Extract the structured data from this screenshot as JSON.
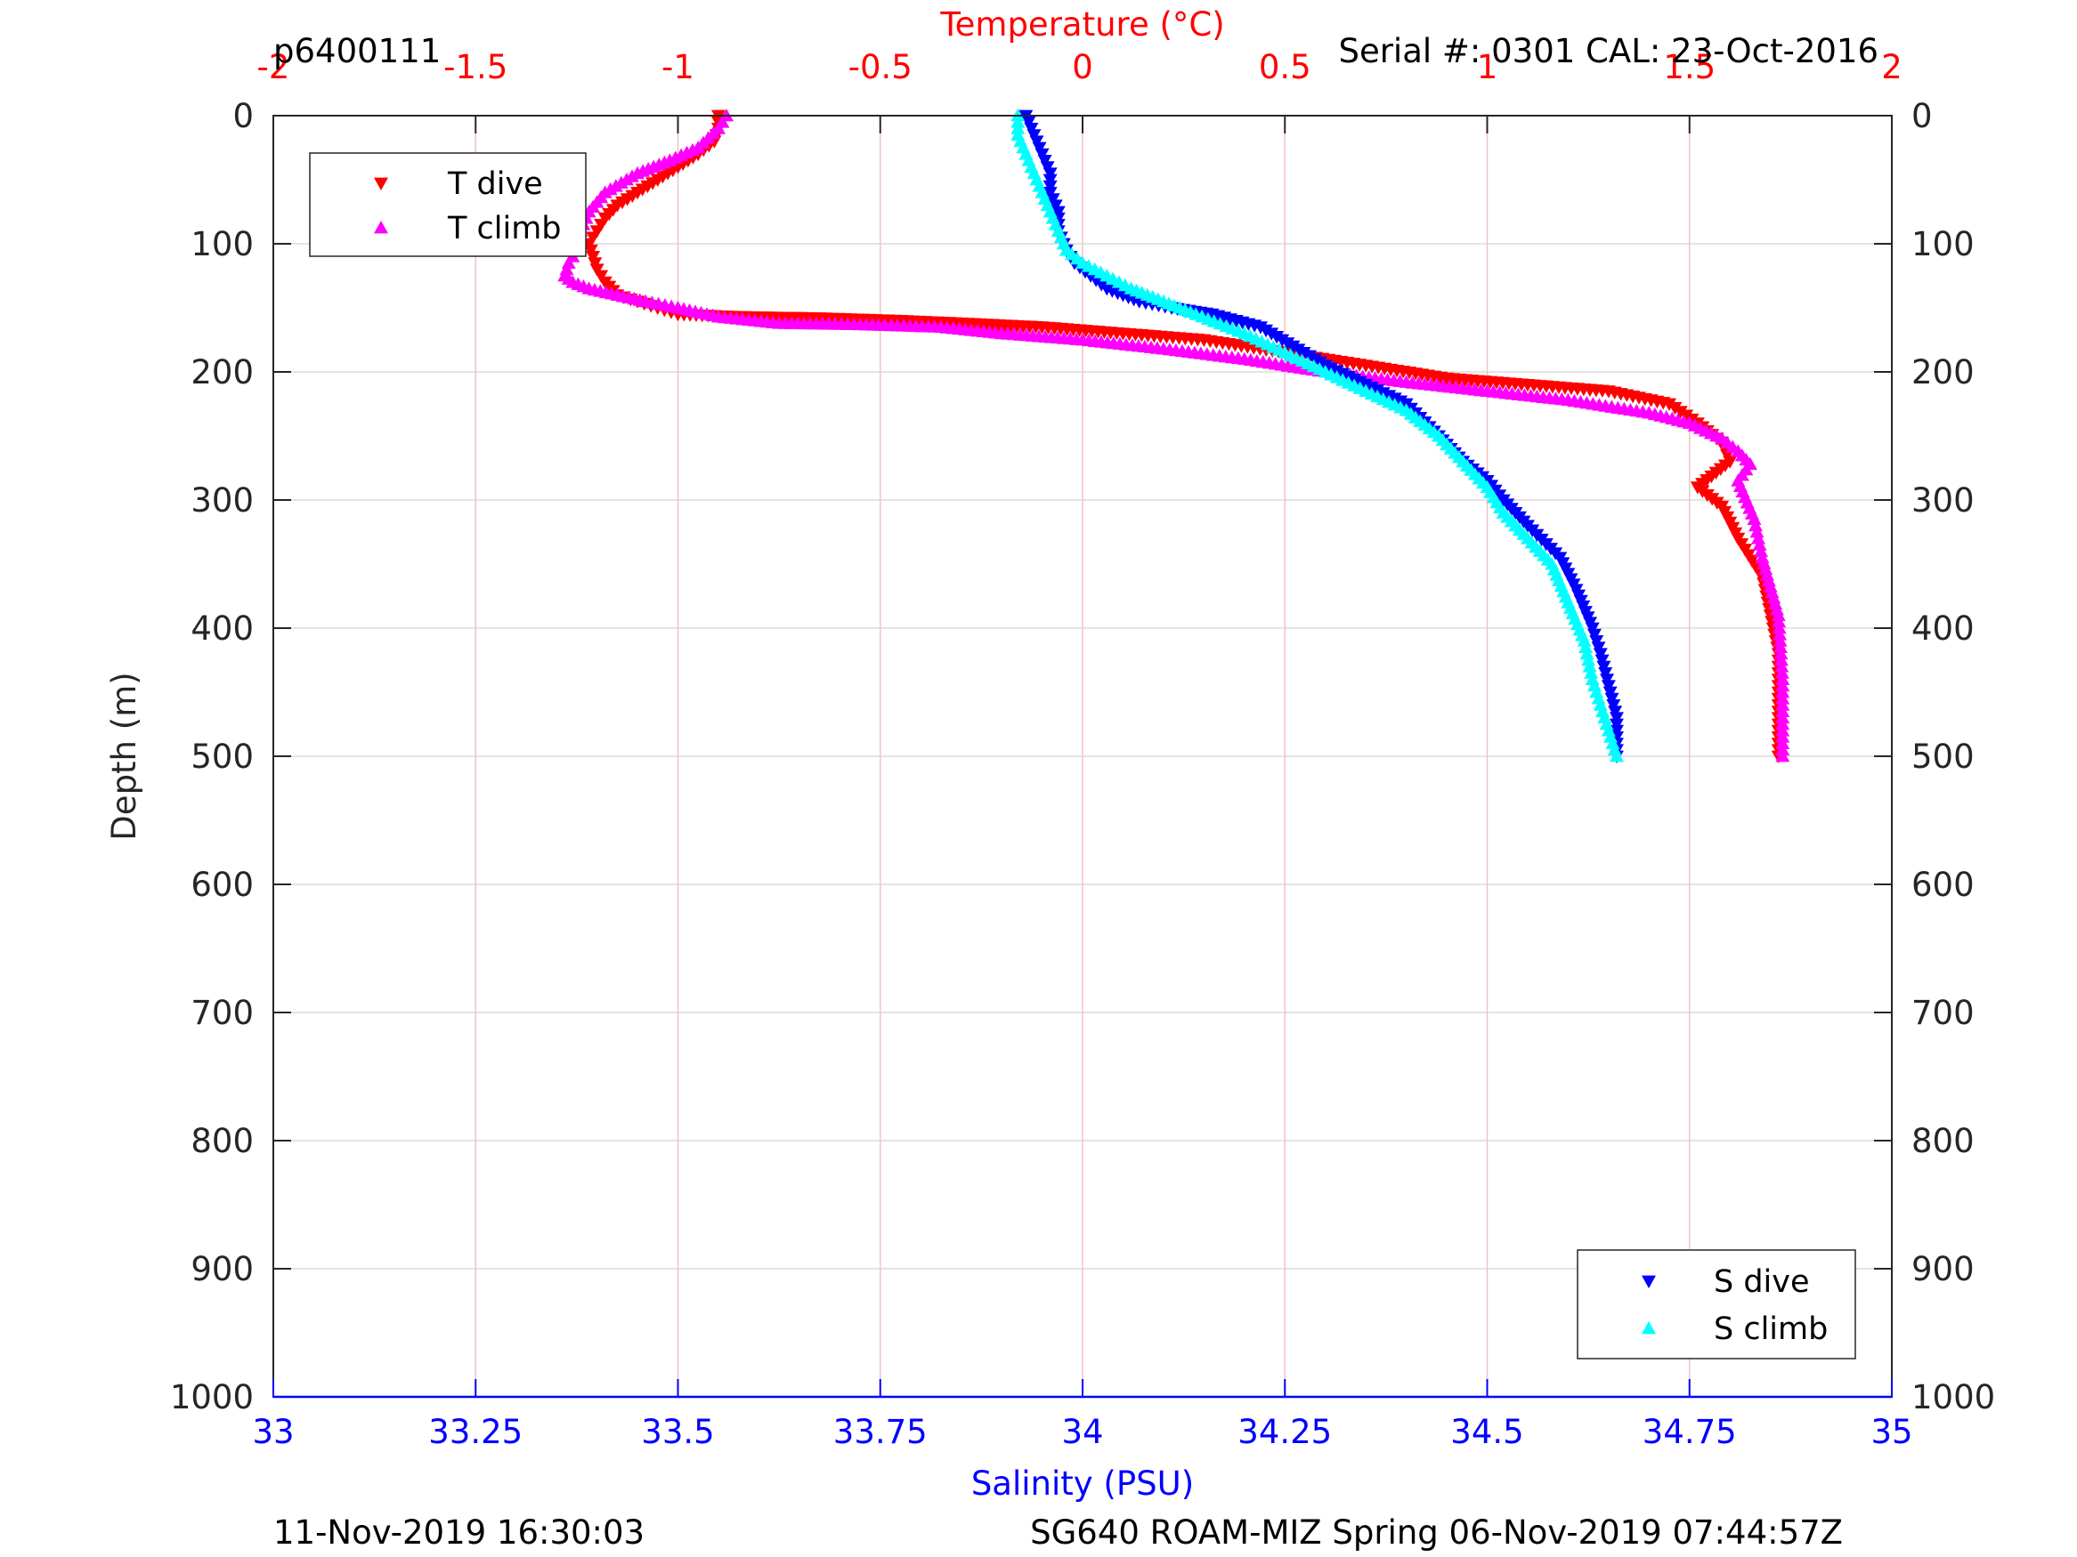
{
  "header": {
    "profile_id": "p6400111",
    "serial_cal": "Serial #: 0301  CAL: 23-Oct-2016"
  },
  "footer": {
    "generated": "11-Nov-2019 16:30:03",
    "mission": "SG640 ROAM-MIZ Spring 06-Nov-2019 07:44:57Z"
  },
  "colors": {
    "temperature": "#ff0000",
    "salinity": "#0000ff",
    "t_dive": "#ff0000",
    "t_climb": "#ff00ff",
    "s_dive": "#0000ff",
    "s_climb": "#00ffff",
    "axis": "#262626",
    "grid_vertical": "#f4c2c2",
    "grid_horizontal": "#dcdcdc"
  },
  "chart_data": {
    "type": "scatter",
    "ylabel": "Depth (m)",
    "top_xlabel": "Temperature (°C)",
    "bottom_xlabel": "Salinity (PSU)",
    "ylim": [
      0,
      1000
    ],
    "y_reversed": true,
    "y_ticks": [
      "0",
      "100",
      "200",
      "300",
      "400",
      "500",
      "600",
      "700",
      "800",
      "900",
      "1000"
    ],
    "temperature_axis": {
      "lim": [
        -2,
        2
      ],
      "ticks": [
        "-2",
        "-1.5",
        "-1",
        "-0.5",
        "0",
        "0.5",
        "1",
        "1.5",
        "2"
      ]
    },
    "salinity_axis": {
      "lim": [
        33,
        35
      ],
      "ticks": [
        "33",
        "33.25",
        "33.5",
        "33.75",
        "34",
        "34.25",
        "34.5",
        "34.75",
        "35"
      ]
    },
    "grid": true,
    "legends": [
      {
        "placement": "top-left",
        "entries": [
          "T dive",
          "T climb"
        ]
      },
      {
        "placement": "bottom-right",
        "entries": [
          "S dive",
          "S climb"
        ]
      }
    ],
    "series": [
      {
        "name": "T dive",
        "axis": "temperature",
        "marker": "triangle-down",
        "x": [
          -0.9,
          -0.9,
          -0.91,
          -0.95,
          -1.0,
          -1.05,
          -1.1,
          -1.15,
          -1.18,
          -1.2,
          -1.22,
          -1.21,
          -1.2,
          -1.18,
          -1.15,
          -1.1,
          -1.05,
          -1.0,
          -0.85,
          -0.65,
          -0.45,
          -0.3,
          -0.1,
          0.1,
          0.3,
          0.5,
          0.7,
          0.9,
          1.1,
          1.3,
          1.45,
          1.52,
          1.58,
          1.6,
          1.52,
          1.58,
          1.62,
          1.68,
          1.7,
          1.72,
          1.72,
          1.72
        ],
        "y": [
          0,
          10,
          20,
          30,
          40,
          50,
          60,
          70,
          80,
          90,
          100,
          110,
          120,
          130,
          140,
          145,
          150,
          155,
          157,
          158,
          160,
          162,
          165,
          170,
          175,
          185,
          195,
          205,
          210,
          215,
          225,
          240,
          255,
          270,
          290,
          305,
          330,
          360,
          390,
          420,
          460,
          500
        ]
      },
      {
        "name": "T climb",
        "axis": "temperature",
        "marker": "triangle-up",
        "x": [
          -0.88,
          -0.9,
          -0.95,
          -1.02,
          -1.1,
          -1.18,
          -1.22,
          -1.24,
          -1.25,
          -1.27,
          -1.28,
          -1.26,
          -1.22,
          -1.15,
          -1.08,
          -1.0,
          -0.9,
          -0.75,
          -0.55,
          -0.35,
          -0.2,
          0.0,
          0.2,
          0.4,
          0.6,
          0.8,
          1.0,
          1.2,
          1.4,
          1.5,
          1.58,
          1.62,
          1.65,
          1.62,
          1.66,
          1.68,
          1.72,
          1.73,
          1.73
        ],
        "y": [
          0,
          10,
          25,
          35,
          45,
          60,
          75,
          90,
          105,
          115,
          125,
          130,
          135,
          140,
          145,
          150,
          157,
          162,
          163,
          165,
          170,
          175,
          182,
          190,
          200,
          208,
          215,
          222,
          232,
          240,
          252,
          262,
          272,
          285,
          315,
          345,
          390,
          440,
          500
        ]
      },
      {
        "name": "S dive",
        "axis": "salinity",
        "marker": "triangle-down",
        "x": [
          33.93,
          33.94,
          33.95,
          33.96,
          33.96,
          33.97,
          33.97,
          33.98,
          33.99,
          34.01,
          34.03,
          34.07,
          34.11,
          34.16,
          34.22,
          34.26,
          34.3,
          34.35,
          34.4,
          34.44,
          34.47,
          34.5,
          34.52,
          34.55,
          34.59,
          34.61,
          34.63,
          34.64,
          34.65,
          34.66,
          34.66
        ],
        "y": [
          0,
          15,
          30,
          45,
          60,
          75,
          90,
          105,
          115,
          125,
          135,
          145,
          150,
          155,
          165,
          180,
          195,
          210,
          225,
          250,
          270,
          285,
          300,
          320,
          345,
          370,
          400,
          420,
          445,
          470,
          500
        ]
      },
      {
        "name": "S climb",
        "axis": "salinity",
        "marker": "triangle-up",
        "x": [
          33.92,
          33.92,
          33.93,
          33.94,
          33.95,
          33.96,
          33.97,
          33.98,
          34.0,
          34.03,
          34.06,
          34.1,
          34.14,
          34.2,
          34.25,
          34.3,
          34.35,
          34.4,
          34.44,
          34.47,
          34.5,
          34.52,
          34.55,
          34.58,
          34.6,
          34.62,
          34.63,
          34.64,
          34.65,
          34.66
        ],
        "y": [
          0,
          15,
          30,
          45,
          60,
          75,
          90,
          105,
          115,
          125,
          135,
          145,
          155,
          170,
          185,
          200,
          215,
          230,
          250,
          270,
          290,
          310,
          330,
          350,
          380,
          410,
          440,
          460,
          480,
          500
        ]
      }
    ]
  }
}
